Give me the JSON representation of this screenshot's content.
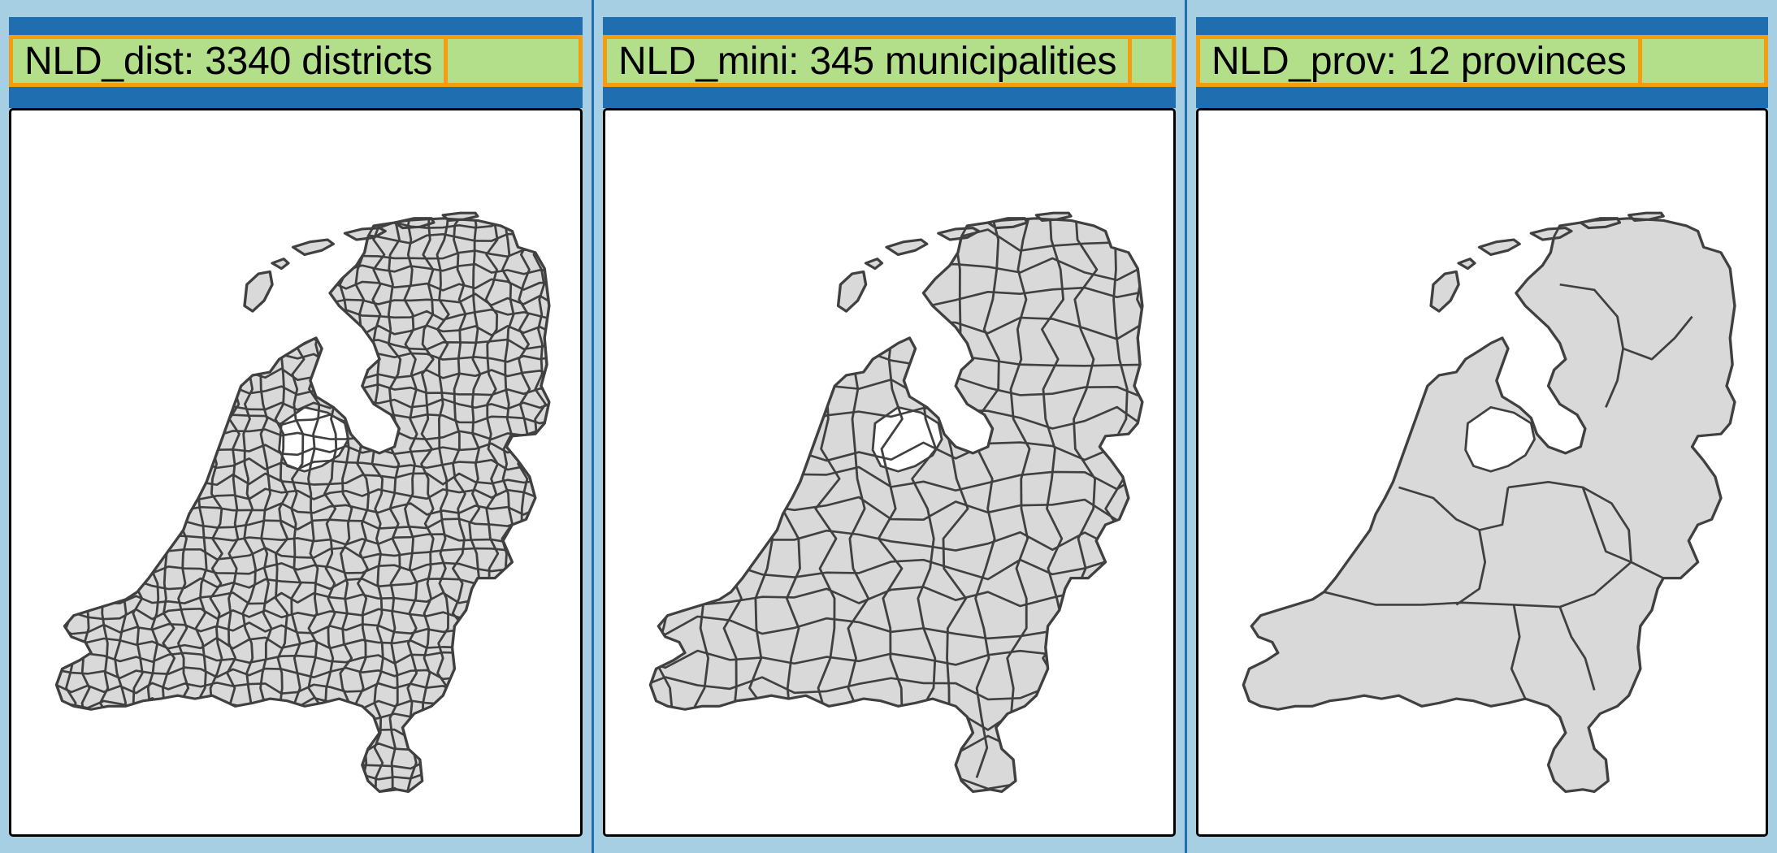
{
  "panels": [
    {
      "title": "NLD_dist: 3340 districts"
    },
    {
      "title": "NLD_mini: 345 municipalities"
    },
    {
      "title": "NLD_prov: 12 provinces"
    }
  ],
  "colors": {
    "background": "#a6cfe4",
    "header": "#1f6fb0",
    "title_fill": "#b3df8a",
    "title_border": "#f59d0f",
    "land_fill": "#d9d9d9",
    "border_stroke": "#404040"
  }
}
